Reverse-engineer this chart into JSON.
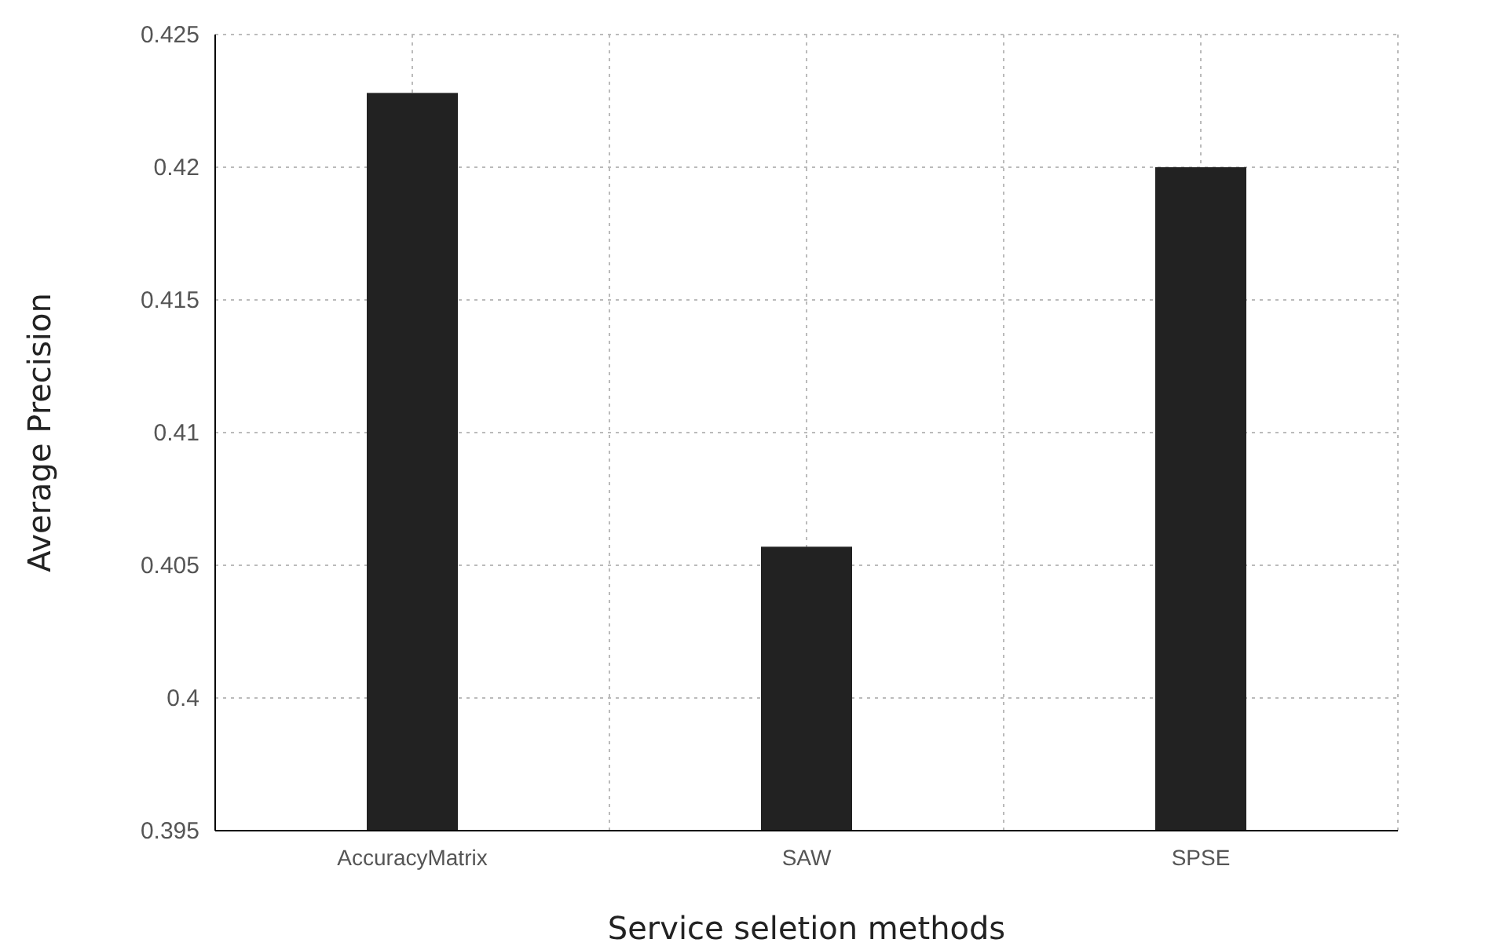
{
  "chart_data": {
    "type": "bar",
    "xlabel": "Service seletion methods",
    "ylabel": "Average Precision",
    "categories": [
      "AccuracyMatrix",
      "SAW",
      "SPSE"
    ],
    "values": [
      0.4228,
      0.4057,
      0.42
    ],
    "color": "#222222",
    "ylim": [
      0.395,
      0.425
    ],
    "yticks": [
      0.395,
      0.4,
      0.405,
      0.41,
      0.415,
      0.42,
      0.425
    ],
    "grid": true
  }
}
